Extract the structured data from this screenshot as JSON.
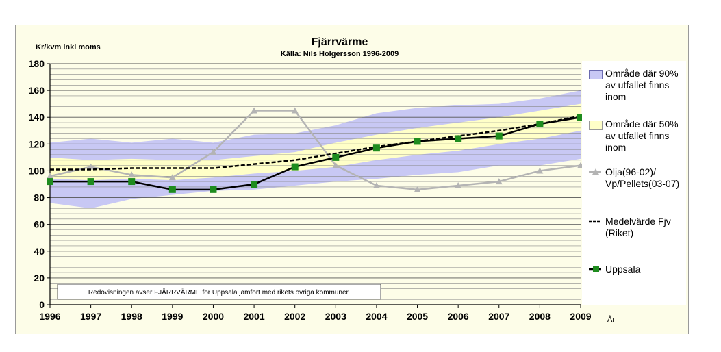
{
  "chart_data": {
    "type": "line",
    "title": "Fjärrvärme",
    "subtitle": "Källa: Nils Holgersson 1996-2009",
    "ylabel": "Kr/kvm inkl moms",
    "xlabel": "År",
    "note": "Redovisningen avser FJÄRRVÄRME för Uppsala jämfört med rikets övriga kommuner.",
    "x": [
      "1996",
      "1997",
      "1998",
      "1999",
      "2000",
      "2001",
      "2002",
      "2003",
      "2004",
      "2005",
      "2006",
      "2007",
      "2008",
      "2009"
    ],
    "ylim": [
      0,
      180
    ],
    "yticks": [
      "0",
      "20",
      "40",
      "60",
      "80",
      "100",
      "120",
      "140",
      "160",
      "180"
    ],
    "grid": true,
    "legend_position": "right",
    "bands": [
      {
        "name": "Område där 90% av utfallet finns inom",
        "color": "#c8c8f4",
        "lower": [
          76,
          72,
          79,
          82,
          85,
          86,
          89,
          92,
          94,
          97,
          99,
          104,
          104,
          109
        ],
        "upper": [
          121,
          124,
          121,
          124,
          121,
          127,
          128,
          134,
          143,
          147,
          149,
          150,
          154,
          160
        ]
      },
      {
        "name": "Område där 50% av utfallet finns inom",
        "color": "#ffffc8",
        "lower": [
          94,
          93,
          94,
          93,
          95,
          98,
          100,
          103,
          108,
          112,
          115,
          120,
          124,
          130
        ],
        "upper": [
          110,
          108,
          109,
          108,
          108,
          111,
          114,
          121,
          127,
          132,
          136,
          140,
          145,
          150
        ]
      }
    ],
    "series": [
      {
        "name": "Olja(96-02)/ Vp/Pellets(03-07)",
        "color": "#b4b4b4",
        "values": [
          96,
          103,
          97,
          95,
          114,
          145,
          145,
          104,
          89,
          86,
          89,
          92,
          100,
          104
        ]
      },
      {
        "name": "Medelvärde Fjv (Riket)",
        "color": "#000000",
        "values": [
          101,
          101,
          102,
          102,
          102,
          105,
          108,
          113,
          118,
          122,
          126,
          130,
          135,
          141
        ]
      },
      {
        "name": "Uppsala",
        "color": "#000000",
        "marker_color": "#1e8c1e",
        "values": [
          92,
          92,
          92,
          86,
          86,
          90,
          103,
          110,
          117,
          122,
          124,
          126,
          135,
          140
        ]
      }
    ]
  }
}
